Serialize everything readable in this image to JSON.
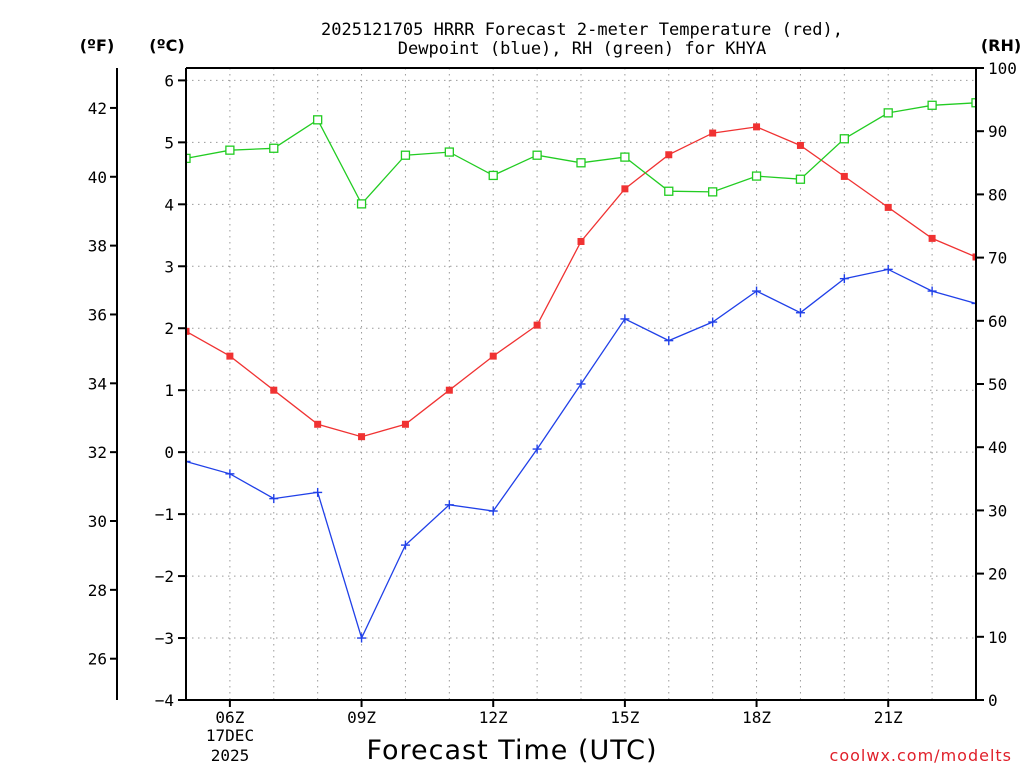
{
  "header": {
    "title_line1": "2025121705 HRRR Forecast 2-meter Temperature (red),",
    "title_line2": "Dewpoint (blue), RH (green) for KHYA",
    "unit_f": "(ºF)",
    "unit_c": "(ºC)",
    "unit_rh": "(RH)"
  },
  "footer": {
    "xlabel": "Forecast Time (UTC)",
    "credit": "coolwx.com/modelts",
    "date_line1": "17DEC",
    "date_line2": "2025"
  },
  "colors": {
    "temperature": "#f03232",
    "dewpoint": "#2040e8",
    "rh": "#22cc22",
    "axis": "#000000"
  },
  "chart_data": {
    "type": "line",
    "title": "2025121705 HRRR Forecast 2-meter Temperature (red), Dewpoint (blue), RH (green) for KHYA",
    "xlabel": "Forecast Time (UTC)",
    "x_hours": [
      5,
      6,
      7,
      8,
      9,
      10,
      11,
      12,
      13,
      14,
      15,
      16,
      17,
      18,
      19,
      20,
      21,
      22,
      23
    ],
    "xlim": [
      5,
      23
    ],
    "x_ticks": [
      {
        "hour": 6,
        "label": "06Z"
      },
      {
        "hour": 9,
        "label": "09Z"
      },
      {
        "hour": 12,
        "label": "12Z"
      },
      {
        "hour": 15,
        "label": "15Z"
      },
      {
        "hour": 18,
        "label": "18Z"
      },
      {
        "hour": 21,
        "label": "21Z"
      }
    ],
    "y_left_c": {
      "label": "(ºC)",
      "ylim": [
        -4,
        6.2
      ],
      "ticks": [
        -4,
        -3,
        -2,
        -1,
        0,
        1,
        2,
        3,
        4,
        5,
        6
      ],
      "tick_labels": [
        "−4",
        "−3",
        "−2",
        "−1",
        "0",
        "1",
        "2",
        "3",
        "4",
        "5",
        "6"
      ]
    },
    "y_left_f": {
      "label": "(ºF)",
      "ticks": [
        26,
        28,
        30,
        32,
        34,
        36,
        38,
        40,
        42
      ],
      "tick_labels": [
        "26",
        "28",
        "30",
        "32",
        "34",
        "36",
        "38",
        "40",
        "42"
      ]
    },
    "y_right_rh": {
      "label": "(RH)",
      "ylim": [
        0,
        100
      ],
      "ticks": [
        0,
        10,
        20,
        30,
        40,
        50,
        60,
        70,
        80,
        90,
        100
      ],
      "tick_labels": [
        "0",
        "10",
        "20",
        "30",
        "40",
        "50",
        "60",
        "70",
        "80",
        "90",
        "100"
      ]
    },
    "series": [
      {
        "name": "Temperature",
        "unit": "C",
        "color": "#f03232",
        "marker": "filled-square",
        "values": [
          1.95,
          1.55,
          1.0,
          0.45,
          0.25,
          0.45,
          1.0,
          1.55,
          2.05,
          3.4,
          4.25,
          4.8,
          5.15,
          5.25,
          4.95,
          4.45,
          3.95,
          3.45,
          3.15
        ]
      },
      {
        "name": "Dewpoint",
        "unit": "C",
        "color": "#2040e8",
        "marker": "plus",
        "values": [
          -0.15,
          -0.35,
          -0.75,
          -0.65,
          -3.0,
          -1.5,
          -0.85,
          -0.95,
          0.05,
          1.1,
          2.15,
          1.8,
          2.1,
          2.6,
          2.25,
          2.8,
          2.95,
          2.6,
          2.4
        ]
      },
      {
        "name": "RH",
        "unit": "%",
        "color": "#22cc22",
        "marker": "open-square",
        "axis": "right",
        "values": [
          85.7,
          87.0,
          87.3,
          91.8,
          78.5,
          86.2,
          86.7,
          83.0,
          86.2,
          85.0,
          85.9,
          80.5,
          80.4,
          82.9,
          82.4,
          88.8,
          92.9,
          94.1,
          94.5
        ]
      }
    ]
  }
}
